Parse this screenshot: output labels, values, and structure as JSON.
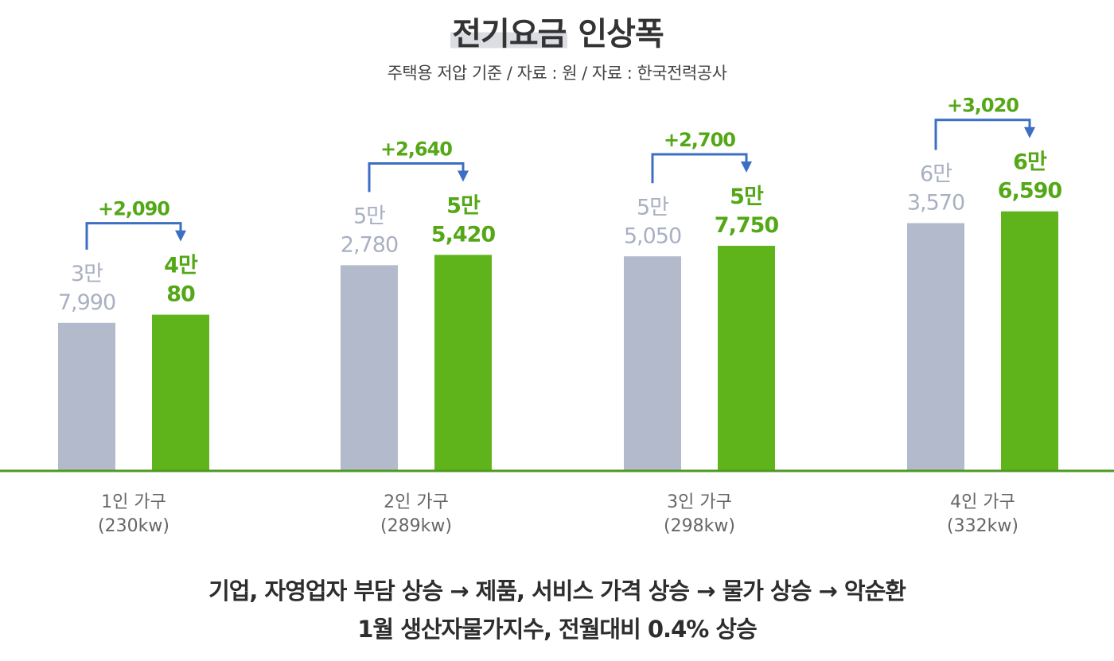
{
  "title_main": "전기요금",
  "title_rest": "인상폭",
  "subtitle": "주택용 저압 기준 / 자료 : 원 / 자료 : 한국전력공사",
  "chart_data": {
    "type": "bar",
    "categories": [
      {
        "line1": "1인 가구",
        "line2": "(230kw)"
      },
      {
        "line1": "2인 가구",
        "line2": "(289kw)"
      },
      {
        "line1": "3인 가구",
        "line2": "(298kw)"
      },
      {
        "line1": "4인 가구",
        "line2": "(332kw)"
      }
    ],
    "series": [
      {
        "color": "#b3bacb",
        "values": [
          37990,
          52780,
          55050,
          63570
        ],
        "labels": [
          [
            "3만",
            "7,990"
          ],
          [
            "5만",
            "2,780"
          ],
          [
            "5만",
            "5,050"
          ],
          [
            "6만",
            "3,570"
          ]
        ]
      },
      {
        "color": "#5fb41b",
        "values": [
          40080,
          55420,
          57750,
          66590
        ],
        "labels": [
          [
            "4만",
            "80"
          ],
          [
            "5만",
            "5,420"
          ],
          [
            "5만",
            "7,750"
          ],
          [
            "6만",
            "6,590"
          ]
        ]
      }
    ],
    "increase_labels": [
      "+2,090",
      "+2,640",
      "+2,700",
      "+3,020"
    ],
    "colors": {
      "before_label": "#a9b0c2",
      "after_label": "#54a817",
      "arrow": "#3c6fc4",
      "increase_label": "#54a817",
      "baseline": "#4c9a1f",
      "category_label": "#666666"
    }
  },
  "footer": {
    "line1": "기업, 자영업자 부담 상승 → 제품, 서비스 가격 상승 → 물가 상승 → 악순환",
    "line2": "1월 생산자물가지수, 전월대비 0.4% 상승"
  }
}
